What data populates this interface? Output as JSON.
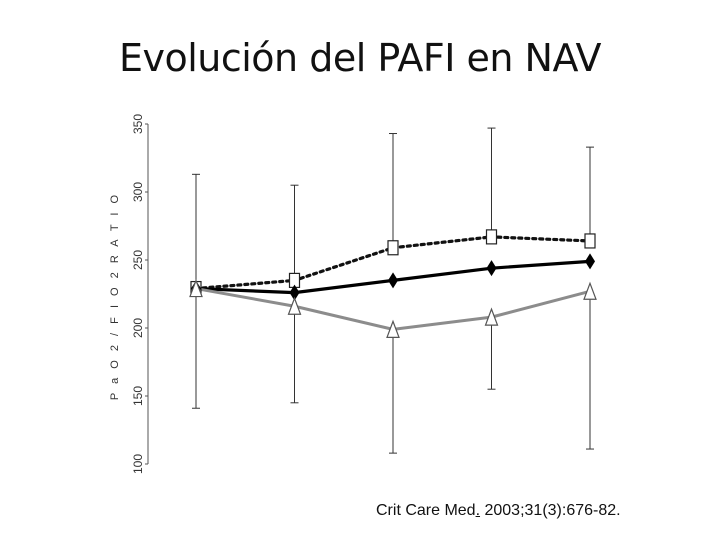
{
  "title": "Evolución del PAFI en NAV",
  "citation": {
    "journal": "Crit Care Med",
    "sep": ".",
    "rest": " 2003;31(3):676-82."
  },
  "chart_data": {
    "type": "line",
    "ylabel": "P a O 2 / F I O 2  R A T I O",
    "ylim": [
      100,
      350
    ],
    "yticks": [
      "100",
      "150",
      "200",
      "250",
      "300",
      "350"
    ],
    "x": [
      1,
      2,
      3,
      4,
      5
    ],
    "series": [
      {
        "marker": "square",
        "line": "dotted",
        "color": "#111111",
        "values": [
          229,
          235,
          259,
          267,
          264
        ],
        "error_upper": [
          313,
          305,
          343,
          347,
          333
        ]
      },
      {
        "marker": "diamond",
        "line": "solid",
        "color": "#000000",
        "values": [
          229,
          226,
          235,
          244,
          249
        ]
      },
      {
        "marker": "triangle",
        "line": "solid",
        "color": "#8c8c8c",
        "values": [
          229,
          216,
          199,
          208,
          227
        ],
        "error_lower": [
          141,
          145,
          108,
          155,
          111
        ]
      }
    ]
  }
}
